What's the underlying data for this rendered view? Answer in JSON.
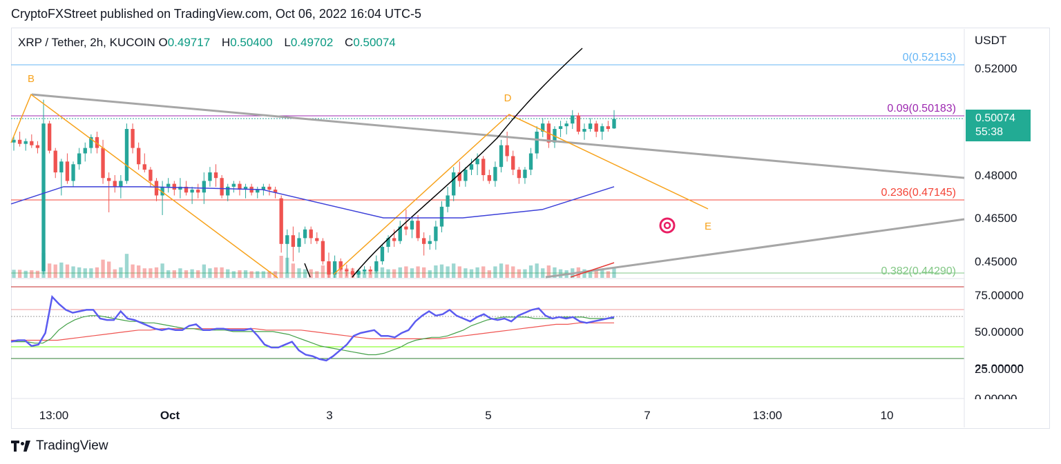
{
  "header": "CryptoFXStreet published on TradingView.com, Oct 06, 2022 16:04 UTC-5",
  "footer": {
    "brand": "TradingView"
  },
  "legend": {
    "symbol": "XRP / Tether, 2h, KUCOIN",
    "o_label": "O",
    "o": "0.49717",
    "h_label": "H",
    "h": "0.50400",
    "l_label": "L",
    "l": "0.49702",
    "c_label": "C",
    "c": "0.50074"
  },
  "price_badge": {
    "price": "0.50074",
    "countdown": "55:38"
  },
  "colors": {
    "up": "#26a69a",
    "down": "#ef5350",
    "accent_orange": "#f7a21b",
    "ma_blue": "#3b3fd8",
    "rsi": "#5b5bf0"
  },
  "chart_data": [
    {
      "type": "candlestick",
      "axis_unit": "USDT",
      "y_ticks": [
        "0.52000",
        "0.48000",
        "0.46500",
        "0.45000"
      ],
      "x_ticks": [
        "13:00",
        "Oct",
        "3",
        "5",
        "7",
        "13:00",
        "10"
      ],
      "fib_levels": [
        {
          "label": "0(0.52153)",
          "value": 0.52153,
          "color": "#64b5f6"
        },
        {
          "label": "0.09(0.50183)",
          "value": 0.50183,
          "color": "#9c27b0"
        },
        {
          "label": "0.236(0.47145)",
          "value": 0.47145,
          "color": "#f44336"
        },
        {
          "label": "0.382(0.44290)",
          "value": 0.4429,
          "color": "#81c784"
        }
      ],
      "wave_labels": [
        "B",
        "D",
        "E"
      ],
      "candles": [
        [
          0.492,
          0.4945,
          0.489,
          0.493
        ],
        [
          0.493,
          0.496,
          0.4905,
          0.4915
        ],
        [
          0.4915,
          0.4935,
          0.489,
          0.4925
        ],
        [
          0.4925,
          0.495,
          0.49,
          0.491
        ],
        [
          0.491,
          0.4925,
          0.488,
          0.49
        ],
        [
          0.444,
          0.508,
          0.442,
          0.499
        ],
        [
          0.499,
          0.5,
          0.488,
          0.489
        ],
        [
          0.489,
          0.49,
          0.479,
          0.481
        ],
        [
          0.481,
          0.486,
          0.473,
          0.485
        ],
        [
          0.485,
          0.488,
          0.477,
          0.478
        ],
        [
          0.478,
          0.485,
          0.476,
          0.484
        ],
        [
          0.484,
          0.49,
          0.482,
          0.488
        ],
        [
          0.488,
          0.492,
          0.485,
          0.49
        ],
        [
          0.49,
          0.495,
          0.488,
          0.494
        ],
        [
          0.494,
          0.496,
          0.488,
          0.49
        ],
        [
          0.49,
          0.493,
          0.477,
          0.479
        ],
        [
          0.479,
          0.481,
          0.467,
          0.478
        ],
        [
          0.478,
          0.48,
          0.474,
          0.476
        ],
        [
          0.476,
          0.48,
          0.472,
          0.478
        ],
        [
          0.478,
          0.499,
          0.477,
          0.497
        ],
        [
          0.497,
          0.499,
          0.488,
          0.49
        ],
        [
          0.49,
          0.492,
          0.482,
          0.484
        ],
        [
          0.484,
          0.488,
          0.481,
          0.482
        ],
        [
          0.482,
          0.483,
          0.476,
          0.478
        ],
        [
          0.478,
          0.479,
          0.471,
          0.473
        ],
        [
          0.473,
          0.478,
          0.466,
          0.476
        ],
        [
          0.476,
          0.479,
          0.474,
          0.477
        ],
        [
          0.477,
          0.478,
          0.473,
          0.475
        ],
        [
          0.475,
          0.479,
          0.472,
          0.476
        ],
        [
          0.476,
          0.478,
          0.473,
          0.474
        ],
        [
          0.474,
          0.476,
          0.47,
          0.475
        ],
        [
          0.475,
          0.477,
          0.472,
          0.474
        ],
        [
          0.474,
          0.481,
          0.47,
          0.478
        ],
        [
          0.478,
          0.483,
          0.476,
          0.481
        ],
        [
          0.481,
          0.484,
          0.476,
          0.479
        ],
        [
          0.479,
          0.48,
          0.472,
          0.473
        ],
        [
          0.473,
          0.477,
          0.471,
          0.476
        ],
        [
          0.476,
          0.478,
          0.474,
          0.477
        ],
        [
          0.477,
          0.478,
          0.473,
          0.475
        ],
        [
          0.475,
          0.477,
          0.472,
          0.476
        ],
        [
          0.476,
          0.477,
          0.473,
          0.474
        ],
        [
          0.474,
          0.476,
          0.472,
          0.475
        ],
        [
          0.475,
          0.477,
          0.473,
          0.476
        ],
        [
          0.476,
          0.477,
          0.473,
          0.475
        ],
        [
          0.475,
          0.476,
          0.472,
          0.474
        ],
        [
          0.472,
          0.473,
          0.453,
          0.456
        ],
        [
          0.456,
          0.461,
          0.443,
          0.459
        ],
        [
          0.459,
          0.462,
          0.45,
          0.455
        ],
        [
          0.455,
          0.46,
          0.453,
          0.458
        ],
        [
          0.458,
          0.462,
          0.456,
          0.461
        ],
        [
          0.461,
          0.462,
          0.456,
          0.458
        ],
        [
          0.458,
          0.46,
          0.456,
          0.457
        ],
        [
          0.457,
          0.458,
          0.448,
          0.45
        ],
        [
          0.45,
          0.453,
          0.44,
          0.442
        ],
        [
          0.442,
          0.452,
          0.44,
          0.45
        ],
        [
          0.45,
          0.451,
          0.444,
          0.445
        ],
        [
          0.445,
          0.448,
          0.441,
          0.444
        ],
        [
          0.444,
          0.446,
          0.439,
          0.442
        ],
        [
          0.442,
          0.445,
          0.44,
          0.444
        ],
        [
          0.444,
          0.447,
          0.442,
          0.445
        ],
        [
          0.445,
          0.447,
          0.442,
          0.444
        ],
        [
          0.444,
          0.452,
          0.443,
          0.45
        ],
        [
          0.45,
          0.456,
          0.448,
          0.455
        ],
        [
          0.455,
          0.459,
          0.453,
          0.458
        ],
        [
          0.458,
          0.461,
          0.455,
          0.457
        ],
        [
          0.457,
          0.464,
          0.456,
          0.462
        ],
        [
          0.462,
          0.468,
          0.459,
          0.461
        ],
        [
          0.461,
          0.465,
          0.458,
          0.464
        ],
        [
          0.464,
          0.466,
          0.457,
          0.458
        ],
        [
          0.458,
          0.46,
          0.452,
          0.456
        ],
        [
          0.456,
          0.459,
          0.454,
          0.457
        ],
        [
          0.457,
          0.464,
          0.454,
          0.462
        ],
        [
          0.462,
          0.471,
          0.46,
          0.469
        ],
        [
          0.469,
          0.476,
          0.467,
          0.473
        ],
        [
          0.473,
          0.483,
          0.471,
          0.481
        ],
        [
          0.481,
          0.485,
          0.476,
          0.478
        ],
        [
          0.478,
          0.483,
          0.476,
          0.482
        ],
        [
          0.482,
          0.486,
          0.48,
          0.484
        ],
        [
          0.484,
          0.488,
          0.48,
          0.486
        ],
        [
          0.486,
          0.487,
          0.478,
          0.48
        ],
        [
          0.48,
          0.482,
          0.477,
          0.478
        ],
        [
          0.478,
          0.485,
          0.476,
          0.483
        ],
        [
          0.483,
          0.493,
          0.481,
          0.491
        ],
        [
          0.491,
          0.496,
          0.485,
          0.487
        ],
        [
          0.487,
          0.489,
          0.48,
          0.482
        ],
        [
          0.482,
          0.483,
          0.477,
          0.479
        ],
        [
          0.479,
          0.483,
          0.477,
          0.482
        ],
        [
          0.482,
          0.49,
          0.48,
          0.488
        ],
        [
          0.488,
          0.498,
          0.486,
          0.496
        ],
        [
          0.496,
          0.501,
          0.494,
          0.499
        ],
        [
          0.499,
          0.5,
          0.49,
          0.492
        ],
        [
          0.492,
          0.498,
          0.49,
          0.497
        ],
        [
          0.497,
          0.5,
          0.494,
          0.498
        ],
        [
          0.498,
          0.5,
          0.495,
          0.499
        ],
        [
          0.499,
          0.504,
          0.497,
          0.502
        ],
        [
          0.502,
          0.503,
          0.495,
          0.496
        ],
        [
          0.496,
          0.499,
          0.493,
          0.497
        ],
        [
          0.497,
          0.501,
          0.496,
          0.499
        ],
        [
          0.499,
          0.5,
          0.494,
          0.496
        ],
        [
          0.496,
          0.499,
          0.493,
          0.498
        ],
        [
          0.498,
          0.5,
          0.496,
          0.497
        ],
        [
          0.4972,
          0.504,
          0.497,
          0.5007
        ]
      ],
      "moving_average": [
        0.47,
        0.476,
        0.476,
        0.475,
        0.465,
        0.465,
        0.468,
        0.476
      ],
      "rsi_ticks": [
        "75.00000",
        "50.00000",
        "25.00000",
        "0.00000"
      ],
      "rsi": [
        44,
        45,
        45,
        41,
        42,
        50,
        75,
        70,
        66,
        64,
        65,
        66,
        66,
        60,
        59,
        59,
        65,
        60,
        59,
        57,
        55,
        53,
        52,
        53,
        52,
        52,
        55,
        56,
        52,
        52,
        53,
        53,
        52,
        52,
        52,
        53,
        48,
        42,
        40,
        40,
        42,
        44,
        38,
        35,
        34,
        32,
        31,
        34,
        38,
        42,
        48,
        50,
        51,
        52,
        48,
        48,
        47,
        50,
        52,
        58,
        62,
        65,
        62,
        63,
        66,
        62,
        60,
        58,
        61,
        63,
        60,
        59,
        60,
        58,
        62,
        64,
        66,
        67,
        62,
        60,
        61,
        60,
        61,
        58,
        57,
        58,
        59,
        60,
        61
      ],
      "rsi_ma_green": [
        44,
        44,
        44,
        43,
        43,
        46,
        52,
        56,
        59,
        61,
        62,
        62,
        61,
        60,
        59,
        58,
        58,
        57,
        57,
        56,
        55,
        54,
        53,
        53,
        52,
        52,
        52,
        52,
        51,
        51,
        51,
        51,
        51,
        51,
        50,
        49,
        47,
        45,
        43,
        41,
        40,
        39,
        38,
        37,
        36,
        35,
        35,
        36,
        38,
        40,
        43,
        45,
        46,
        47,
        47,
        48,
        50,
        52,
        55,
        57,
        59,
        60,
        61,
        61,
        61,
        61,
        60,
        60,
        60,
        61,
        61,
        61,
        61,
        60,
        60,
        60,
        60
      ],
      "rsi_ma_red": [
        45,
        45,
        45,
        45,
        45,
        46,
        47,
        48,
        49,
        50,
        51,
        52,
        52,
        53,
        53,
        53,
        53,
        53,
        53,
        53,
        53,
        53,
        52,
        52,
        52,
        52,
        51,
        50,
        49,
        48,
        47,
        46,
        46,
        46,
        46,
        46,
        46,
        46,
        47,
        48,
        49,
        50,
        51,
        52,
        53,
        54,
        55,
        56,
        56,
        57,
        57,
        57,
        57
      ]
    }
  ]
}
